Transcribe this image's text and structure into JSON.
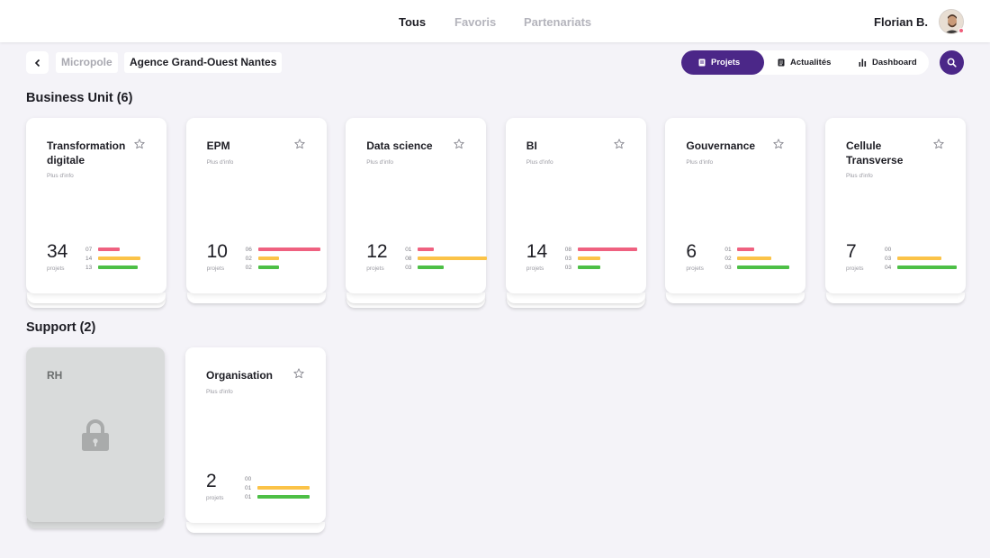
{
  "colors": {
    "accent": "#4b2788",
    "red": "#ef6180",
    "yellow": "#fbc348",
    "green": "#4dbf46"
  },
  "topnav": {
    "tabs": [
      "Tous",
      "Favoris",
      "Partenariats"
    ],
    "user_name": "Florian B."
  },
  "breadcrumb": {
    "parent": "Micropole",
    "current": "Agence Grand-Ouest Nantes"
  },
  "view_tabs": [
    {
      "label": "Projets",
      "icon": "document-icon"
    },
    {
      "label": "Actualités",
      "icon": "news-icon"
    },
    {
      "label": "Dashboard",
      "icon": "bar-chart-icon"
    }
  ],
  "sections": [
    {
      "title": "Business Unit (6)",
      "cards": [
        {
          "title": "Transformation digitale",
          "sub": "Plus d'info",
          "count": "34",
          "unit": "projets",
          "stats": [
            "07",
            "14",
            "13"
          ]
        },
        {
          "title": "EPM",
          "sub": "Plus d'info",
          "count": "10",
          "unit": "projets",
          "stats": [
            "06",
            "02",
            "02"
          ]
        },
        {
          "title": "Data science",
          "sub": "Plus d'info",
          "count": "12",
          "unit": "projets",
          "stats": [
            "01",
            "08",
            "03"
          ]
        },
        {
          "title": "BI",
          "sub": "Plus d'info",
          "count": "14",
          "unit": "projets",
          "stats": [
            "08",
            "03",
            "03"
          ]
        },
        {
          "title": "Gouvernance",
          "sub": "Plus d'info",
          "count": "6",
          "unit": "projets",
          "stats": [
            "01",
            "02",
            "03"
          ]
        },
        {
          "title": "Cellule Transverse",
          "sub": "Plus d'info",
          "count": "7",
          "unit": "projets",
          "stats": [
            "00",
            "03",
            "04"
          ]
        }
      ]
    },
    {
      "title": "Support (2)",
      "locked_card": {
        "title": "RH"
      },
      "cards": [
        {
          "title": "Organisation",
          "sub": "Plus d'info",
          "count": "2",
          "unit": "projets",
          "stats": [
            "00",
            "01",
            "01"
          ]
        }
      ]
    }
  ]
}
